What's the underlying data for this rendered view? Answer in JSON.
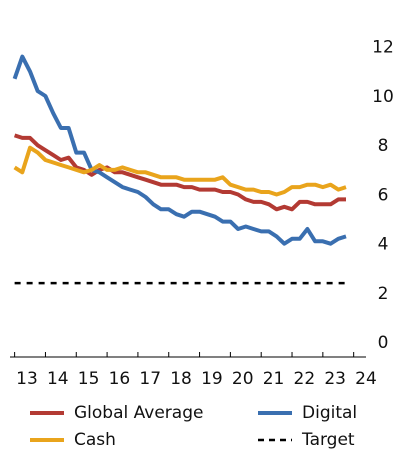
{
  "chart_data": {
    "type": "line",
    "x": [
      13,
      13.25,
      13.5,
      13.75,
      14,
      14.25,
      14.5,
      14.75,
      15,
      15.25,
      15.5,
      15.75,
      16,
      16.25,
      16.5,
      16.75,
      17,
      17.25,
      17.5,
      17.75,
      18,
      18.25,
      18.5,
      18.75,
      19,
      19.25,
      19.5,
      19.75,
      20,
      20.25,
      20.5,
      20.75,
      21,
      21.25,
      21.5,
      21.75,
      22,
      22.25,
      22.5,
      22.75,
      23,
      23.25,
      23.5,
      23.75
    ],
    "series": [
      {
        "name": "Global Average",
        "color": "#b33a33",
        "values": [
          9.0,
          8.9,
          8.9,
          8.6,
          8.4,
          8.2,
          8.0,
          8.1,
          7.7,
          7.6,
          7.4,
          7.6,
          7.7,
          7.5,
          7.5,
          7.4,
          7.3,
          7.2,
          7.1,
          7.0,
          7.0,
          7.0,
          6.9,
          6.9,
          6.8,
          6.8,
          6.8,
          6.7,
          6.7,
          6.6,
          6.4,
          6.3,
          6.3,
          6.2,
          6.0,
          6.1,
          6.0,
          6.3,
          6.3,
          6.2,
          6.2,
          6.2,
          6.4,
          6.4
        ]
      },
      {
        "name": "Digital",
        "color": "#3a6fb0",
        "values": [
          11.3,
          12.2,
          11.6,
          10.8,
          10.6,
          9.9,
          9.3,
          9.3,
          8.3,
          8.3,
          7.6,
          7.5,
          7.3,
          7.1,
          6.9,
          6.8,
          6.7,
          6.5,
          6.2,
          6.0,
          6.0,
          5.8,
          5.7,
          5.9,
          5.9,
          5.8,
          5.7,
          5.5,
          5.5,
          5.2,
          5.3,
          5.2,
          5.1,
          5.1,
          4.9,
          4.6,
          4.8,
          4.8,
          5.2,
          4.7,
          4.7,
          4.6,
          4.8,
          4.9
        ]
      },
      {
        "name": "Cash",
        "color": "#e9a41c",
        "values": [
          7.7,
          7.5,
          8.5,
          8.3,
          8.0,
          7.9,
          7.8,
          7.7,
          7.6,
          7.5,
          7.6,
          7.8,
          7.6,
          7.6,
          7.7,
          7.6,
          7.5,
          7.5,
          7.4,
          7.3,
          7.3,
          7.3,
          7.2,
          7.2,
          7.2,
          7.2,
          7.2,
          7.3,
          7.0,
          6.9,
          6.8,
          6.8,
          6.7,
          6.7,
          6.6,
          6.7,
          6.9,
          6.9,
          7.0,
          7.0,
          6.9,
          7.0,
          6.8,
          6.9
        ]
      }
    ],
    "reference_lines": [
      {
        "name": "Target",
        "value": 3,
        "color": "#000000"
      }
    ],
    "xlim": [
      12.85,
      24.4
    ],
    "xticks": [
      13,
      14,
      15,
      16,
      17,
      18,
      19,
      20,
      21,
      22,
      23,
      24
    ],
    "ylim": [
      0,
      13.2
    ],
    "yticks": [
      0,
      2,
      4,
      6,
      8,
      10,
      12
    ],
    "grid": false
  }
}
